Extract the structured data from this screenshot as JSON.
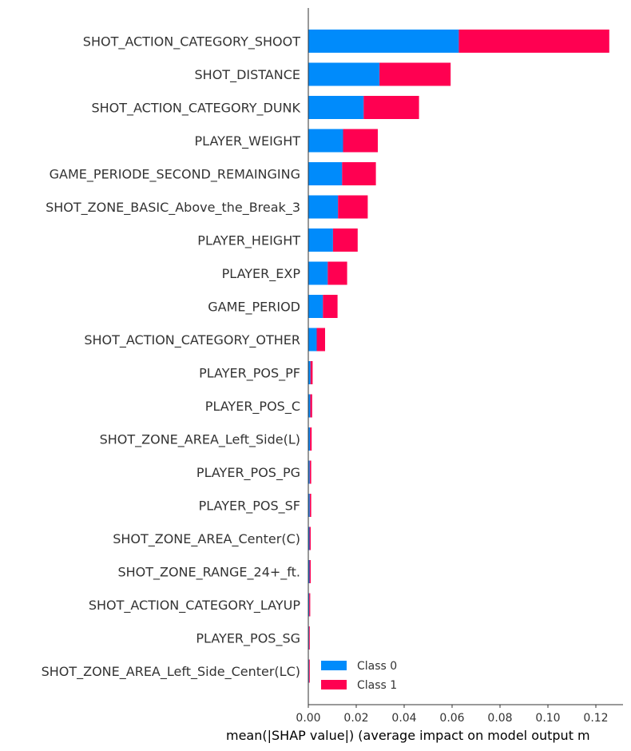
{
  "chart_data": {
    "type": "bar",
    "orientation": "horizontal",
    "stacked": true,
    "xlabel": "mean(|SHAP value|) (average impact on model output m",
    "xlim": [
      0,
      0.131
    ],
    "xticks": [
      "0.00",
      "0.02",
      "0.04",
      "0.06",
      "0.08",
      "0.10",
      "0.12"
    ],
    "grid": false,
    "legend_position": "lower-right",
    "categories": [
      "SHOT_ACTION_CATEGORY_SHOOT",
      "SHOT_DISTANCE",
      "SHOT_ACTION_CATEGORY_DUNK",
      "PLAYER_WEIGHT",
      "GAME_PERIODE_SECOND_REMAINGING",
      "SHOT_ZONE_BASIC_Above_the_Break_3",
      "PLAYER_HEIGHT",
      "PLAYER_EXP",
      "GAME_PERIOD",
      "SHOT_ACTION_CATEGORY_OTHER",
      "PLAYER_POS_PF",
      "PLAYER_POS_C",
      "SHOT_ZONE_AREA_Left_Side(L)",
      "PLAYER_POS_PG",
      "PLAYER_POS_SF",
      "SHOT_ZONE_AREA_Center(C)",
      "SHOT_ZONE_RANGE_24+_ft.",
      "SHOT_ACTION_CATEGORY_LAYUP",
      "PLAYER_POS_SG",
      "SHOT_ZONE_AREA_Left_Side_Center(LC)"
    ],
    "series": [
      {
        "name": "Class 0",
        "color": "#008bfb",
        "values": [
          0.0628,
          0.0297,
          0.0231,
          0.0145,
          0.0141,
          0.0124,
          0.0103,
          0.0081,
          0.0061,
          0.0035,
          0.0009,
          0.0008,
          0.0007,
          0.0006,
          0.0006,
          0.0005,
          0.0005,
          0.0004,
          0.0003,
          0.0003
        ]
      },
      {
        "name": "Class 1",
        "color": "#ff0051",
        "values": [
          0.0628,
          0.0297,
          0.0231,
          0.0145,
          0.0141,
          0.0124,
          0.0103,
          0.0081,
          0.0061,
          0.0035,
          0.0009,
          0.0008,
          0.0007,
          0.0006,
          0.0006,
          0.0005,
          0.0005,
          0.0004,
          0.0003,
          0.0003
        ]
      }
    ]
  }
}
